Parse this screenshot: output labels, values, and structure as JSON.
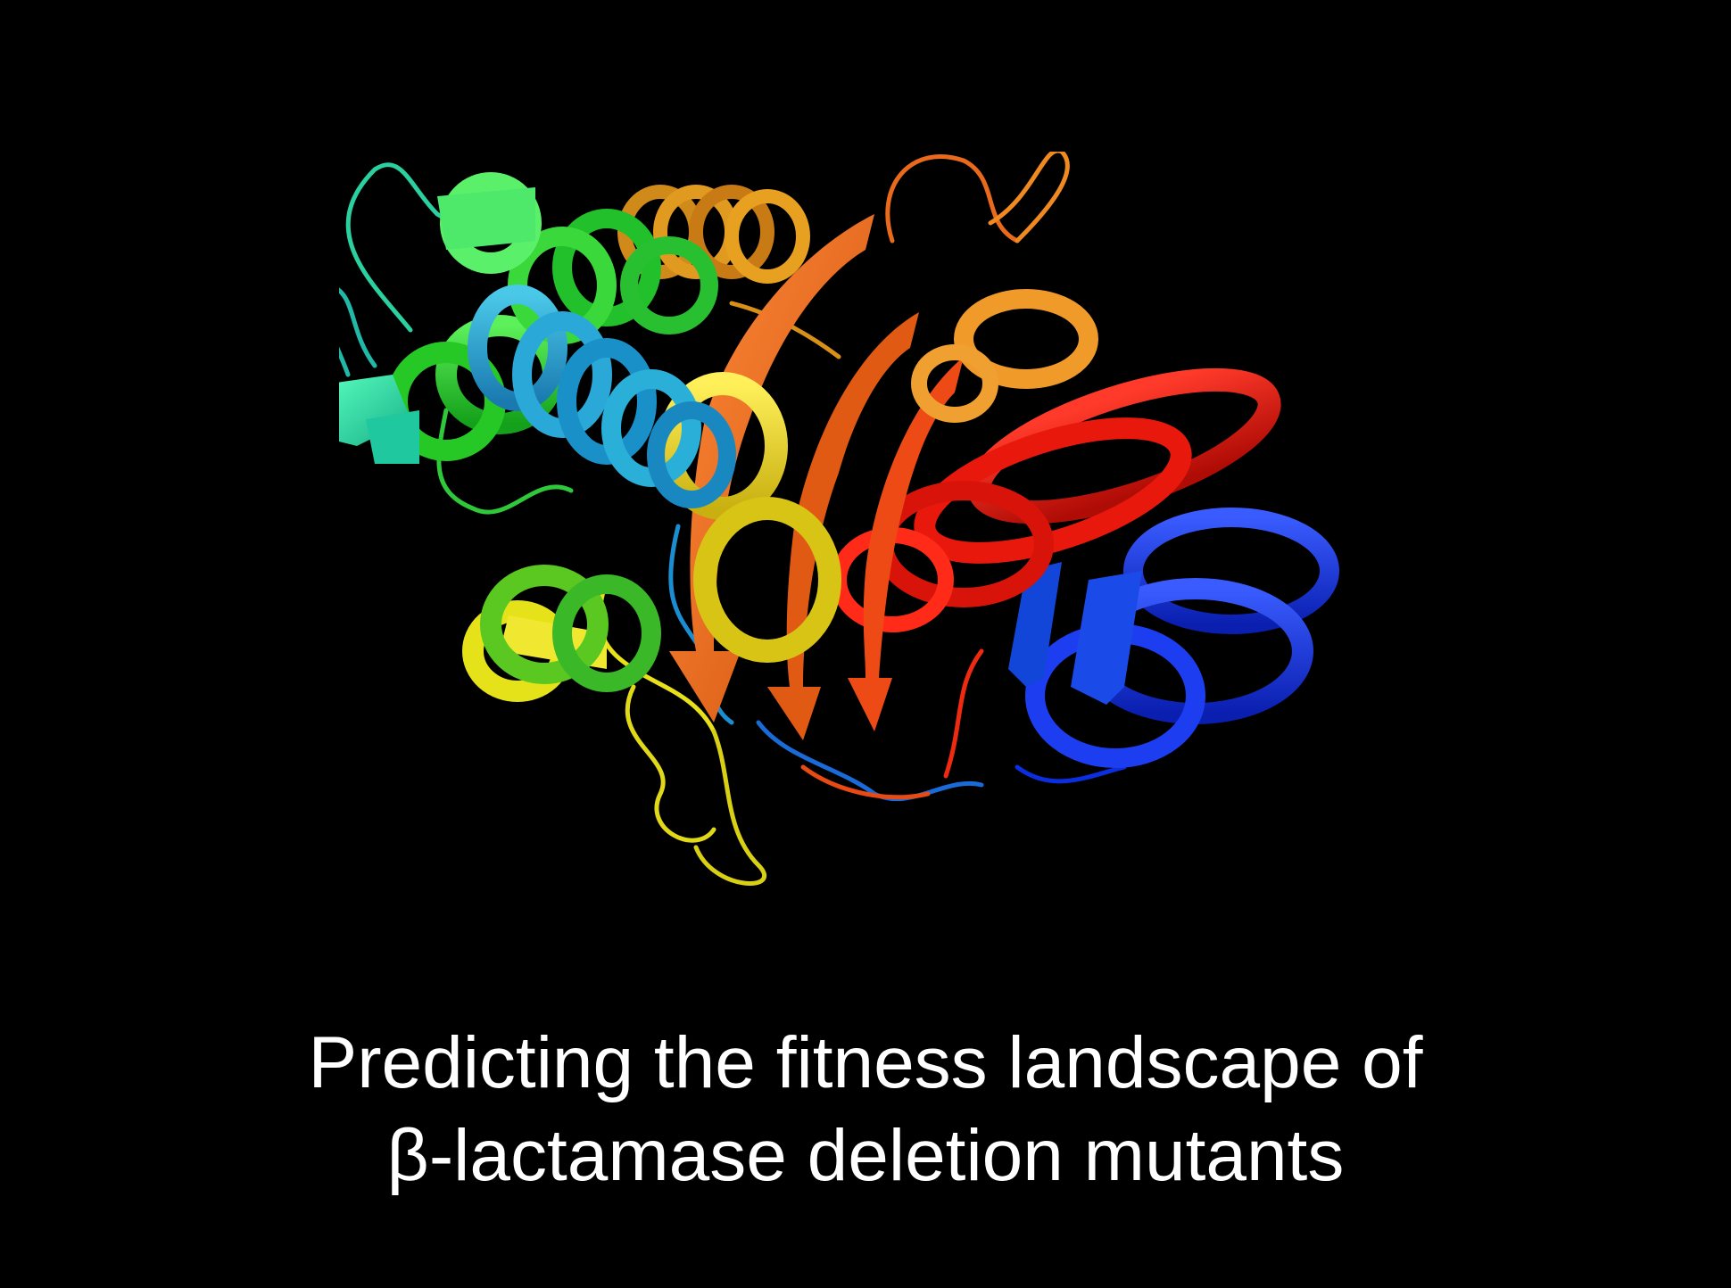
{
  "slide": {
    "background": "#000000",
    "caption_line_1": "Predicting the fitness landscape of",
    "caption_line_2": "β-lactamase deletion mutants",
    "caption_color": "#ffffff"
  },
  "illustration": {
    "kind": "protein-ribbon-structure",
    "palette": [
      "#0b2fe0",
      "#1a7fd0",
      "#2aa8c8",
      "#22c8a0",
      "#1ec83a",
      "#74d21e",
      "#e6e21a",
      "#e8a020",
      "#f07a1e",
      "#e84a14",
      "#ee1a10"
    ]
  }
}
